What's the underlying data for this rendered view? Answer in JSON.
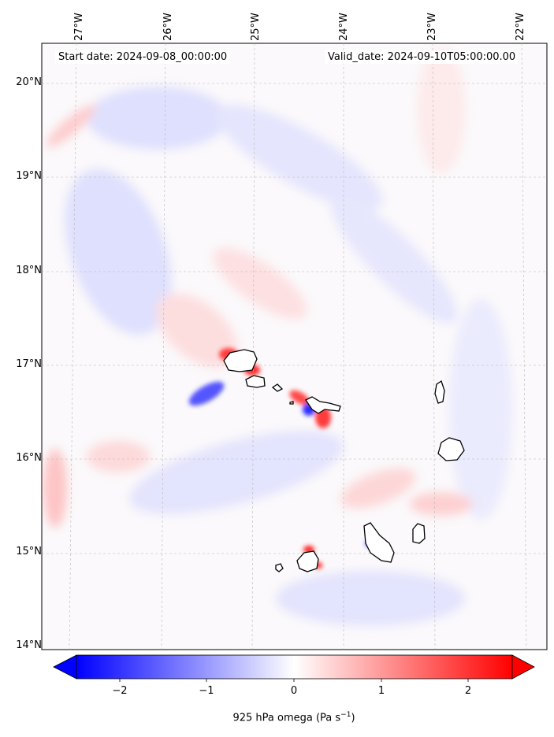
{
  "map": {
    "start_label": "Start date: 2024-09-08_00:00:00",
    "valid_label": "Valid_date: 2024-09-10T05:00:00.00",
    "lon_ticks": [
      "27°W",
      "26°W",
      "25°W",
      "24°W",
      "23°W",
      "22°W"
    ],
    "lat_ticks": [
      "20°N",
      "19°N",
      "18°N",
      "17°N",
      "16°N",
      "15°N",
      "14°N"
    ],
    "colors": {
      "negative": "#0000ff",
      "neutral": "#ffffff",
      "positive": "#ff0000",
      "coastline": "#000000"
    }
  },
  "colorbar": {
    "ticks": [
      "−2",
      "−1",
      "0",
      "1",
      "2"
    ],
    "title": "925 hPa omega (Pa s",
    "title_sup": "−1",
    "title_end": ")"
  }
}
